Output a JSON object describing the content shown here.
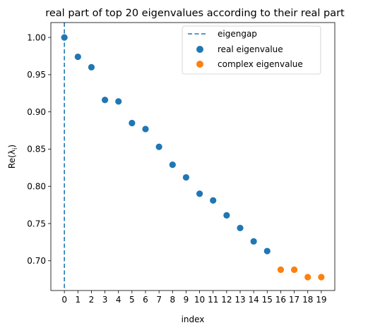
{
  "chart_data": {
    "type": "scatter",
    "title": "real part of top 20 eigenvalues according to their real part",
    "xlabel": "index",
    "ylabel": "Re(λ",
    "ylabel_sub": "i",
    "ylabel_close": ")",
    "xlim": [
      -1,
      20
    ],
    "ylim": [
      0.66,
      1.02
    ],
    "grid": false,
    "legend_position": "top-right",
    "x_ticks": [
      0,
      1,
      2,
      3,
      4,
      5,
      6,
      7,
      8,
      9,
      10,
      11,
      12,
      13,
      14,
      15,
      16,
      17,
      18,
      19
    ],
    "y_ticks": [
      "0.70",
      "0.75",
      "0.80",
      "0.85",
      "0.90",
      "0.95",
      "1.00"
    ],
    "eigengap": {
      "name": "eigengap",
      "x": 0,
      "color": "#1f77b4"
    },
    "series": [
      {
        "name": "real eigenvalue",
        "color": "#1f77b4",
        "x": [
          0,
          1,
          2,
          3,
          4,
          5,
          6,
          7,
          8,
          9,
          10,
          11,
          12,
          13,
          14,
          15
        ],
        "y": [
          1.0,
          0.974,
          0.96,
          0.916,
          0.914,
          0.885,
          0.877,
          0.853,
          0.829,
          0.812,
          0.79,
          0.781,
          0.761,
          0.744,
          0.726,
          0.713
        ]
      },
      {
        "name": "complex eigenvalue",
        "color": "#ff7f0e",
        "x": [
          16,
          17,
          18,
          19
        ],
        "y": [
          0.688,
          0.688,
          0.678,
          0.678
        ]
      }
    ]
  }
}
